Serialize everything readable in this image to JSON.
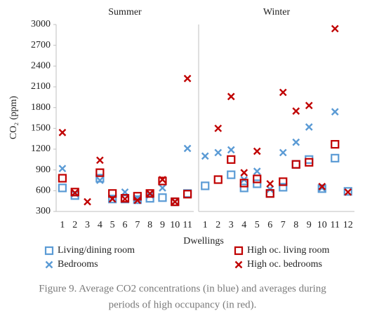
{
  "y_label": "CO₂ (ppm)",
  "x_label": "Dwellings",
  "caption": [
    "Figure 9. Average CO2 concentrations (in blue) and averages during",
    "periods of high occupancy (in red)."
  ],
  "chart_data": [
    {
      "type": "scatter",
      "title": "Summer",
      "categories": [
        "1",
        "2",
        "3",
        "4",
        "5",
        "6",
        "7",
        "8",
        "9",
        "10",
        "11"
      ],
      "ylim": [
        300,
        3000
      ],
      "yticks": [
        300,
        600,
        900,
        1200,
        1500,
        1800,
        2100,
        2400,
        2700,
        3000
      ],
      "series": [
        {
          "name": "Living/dining room",
          "color": "#5b9bd5",
          "marker": "square",
          "values": [
            640,
            530,
            null,
            780,
            480,
            480,
            470,
            490,
            500,
            440,
            560
          ]
        },
        {
          "name": "Bedrooms",
          "color": "#5b9bd5",
          "marker": "x",
          "values": [
            920,
            560,
            null,
            750,
            490,
            580,
            490,
            540,
            640,
            440,
            1210
          ]
        },
        {
          "name": "High oc. living room",
          "color": "#c00000",
          "marker": "square",
          "values": [
            780,
            580,
            null,
            860,
            560,
            490,
            520,
            560,
            740,
            440,
            550
          ]
        },
        {
          "name": "High oc. bedrooms",
          "color": "#c00000",
          "marker": "x",
          "values": [
            1440,
            570,
            440,
            1040,
            480,
            480,
            460,
            560,
            760,
            440,
            2220
          ]
        }
      ]
    },
    {
      "type": "scatter",
      "title": "Winter",
      "categories": [
        "1",
        "2",
        "3",
        "4",
        "5",
        "6",
        "7",
        "8",
        "9",
        "10",
        "11",
        "12"
      ],
      "ylim": [
        300,
        3000
      ],
      "series": [
        {
          "values": [
            670,
            null,
            830,
            640,
            700,
            560,
            650,
            980,
            1050,
            630,
            1070,
            590
          ]
        },
        {
          "values": [
            1100,
            1150,
            1190,
            760,
            880,
            620,
            1150,
            1300,
            1520,
            640,
            1740,
            580
          ]
        },
        {
          "values": [
            null,
            760,
            1050,
            710,
            770,
            560,
            730,
            980,
            1010,
            null,
            1270,
            null
          ]
        },
        {
          "values": [
            null,
            1500,
            1960,
            860,
            1170,
            700,
            2020,
            1750,
            1830,
            660,
            2940,
            580
          ]
        }
      ]
    }
  ]
}
